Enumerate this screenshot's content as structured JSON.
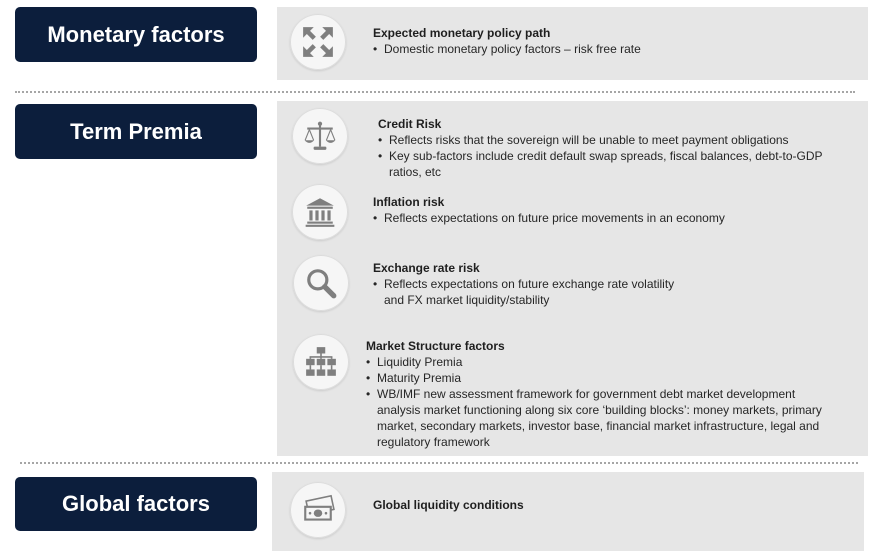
{
  "colors": {
    "navy": "#0c1e3c",
    "panel": "#e6e6e6",
    "icon": "#7f7f7f",
    "divider": "#a6a6a6"
  },
  "sections": [
    {
      "label": "Monetary factors",
      "items": [
        {
          "icon": "expand-arrows-icon",
          "title": "Expected monetary policy path",
          "bullets": [
            [
              "Domestic monetary policy factors – risk free rate"
            ]
          ]
        }
      ]
    },
    {
      "label": "Term Premia",
      "items": [
        {
          "icon": "scales-icon",
          "title": "Credit Risk",
          "bullets": [
            [
              "Reflects risks that the sovereign will be unable to meet payment obligations"
            ],
            [
              "Key sub-factors include credit default swap spreads, fiscal balances, debt-to-GDP",
              "ratios, etc"
            ]
          ]
        },
        {
          "icon": "bank-icon",
          "title": "Inflation risk",
          "bullets": [
            [
              "Reflects expectations on future price movements in an economy"
            ]
          ]
        },
        {
          "icon": "magnifier-icon",
          "title": "Exchange rate risk",
          "bullets": [
            [
              "Reflects expectations on future exchange rate volatility",
              "and FX market liquidity/stability"
            ]
          ]
        },
        {
          "icon": "hierarchy-icon",
          "title": "Market Structure factors",
          "bullets": [
            [
              "Liquidity Premia"
            ],
            [
              "Maturity Premia"
            ],
            [
              "WB/IMF new assessment framework for government debt market development",
              "analysis market functioning along six core ‘building blocks’: money markets, primary",
              "market, secondary markets, investor base, financial market infrastructure, legal and",
              "regulatory framework"
            ]
          ]
        }
      ]
    },
    {
      "label": "Global factors",
      "items": [
        {
          "icon": "cash-icon",
          "title": "Global liquidity conditions",
          "bullets": []
        }
      ]
    }
  ]
}
